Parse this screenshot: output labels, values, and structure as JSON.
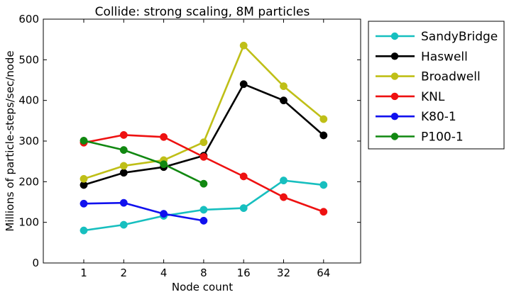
{
  "chart_data": {
    "type": "line",
    "title": "Collide: strong scaling, 8M particles",
    "xlabel": "Node count",
    "ylabel": "Millions of particle-steps/sec/node",
    "categories": [
      "1",
      "2",
      "4",
      "8",
      "16",
      "32",
      "64"
    ],
    "ylim": [
      0,
      600
    ],
    "yticks": [
      0,
      100,
      200,
      300,
      400,
      500,
      600
    ],
    "grid": false,
    "legend_position": "outside-right",
    "series": [
      {
        "name": "SandyBridge",
        "color": "#17bfbf",
        "values": [
          80,
          94,
          116,
          131,
          135,
          203,
          192
        ]
      },
      {
        "name": "Haswell",
        "color": "#000000",
        "values": [
          192,
          222,
          236,
          264,
          440,
          400,
          314
        ]
      },
      {
        "name": "Broadwell",
        "color": "#bfbf17",
        "values": [
          207,
          239,
          253,
          297,
          535,
          435,
          354
        ]
      },
      {
        "name": "KNL",
        "color": "#ee1111",
        "values": [
          296,
          315,
          310,
          261,
          213,
          162,
          126
        ]
      },
      {
        "name": "K80-1",
        "color": "#1111ee",
        "values": [
          146,
          148,
          121,
          104,
          null,
          null,
          null
        ]
      },
      {
        "name": "P100-1",
        "color": "#118811",
        "values": [
          301,
          278,
          243,
          195,
          null,
          null,
          null
        ]
      }
    ]
  }
}
